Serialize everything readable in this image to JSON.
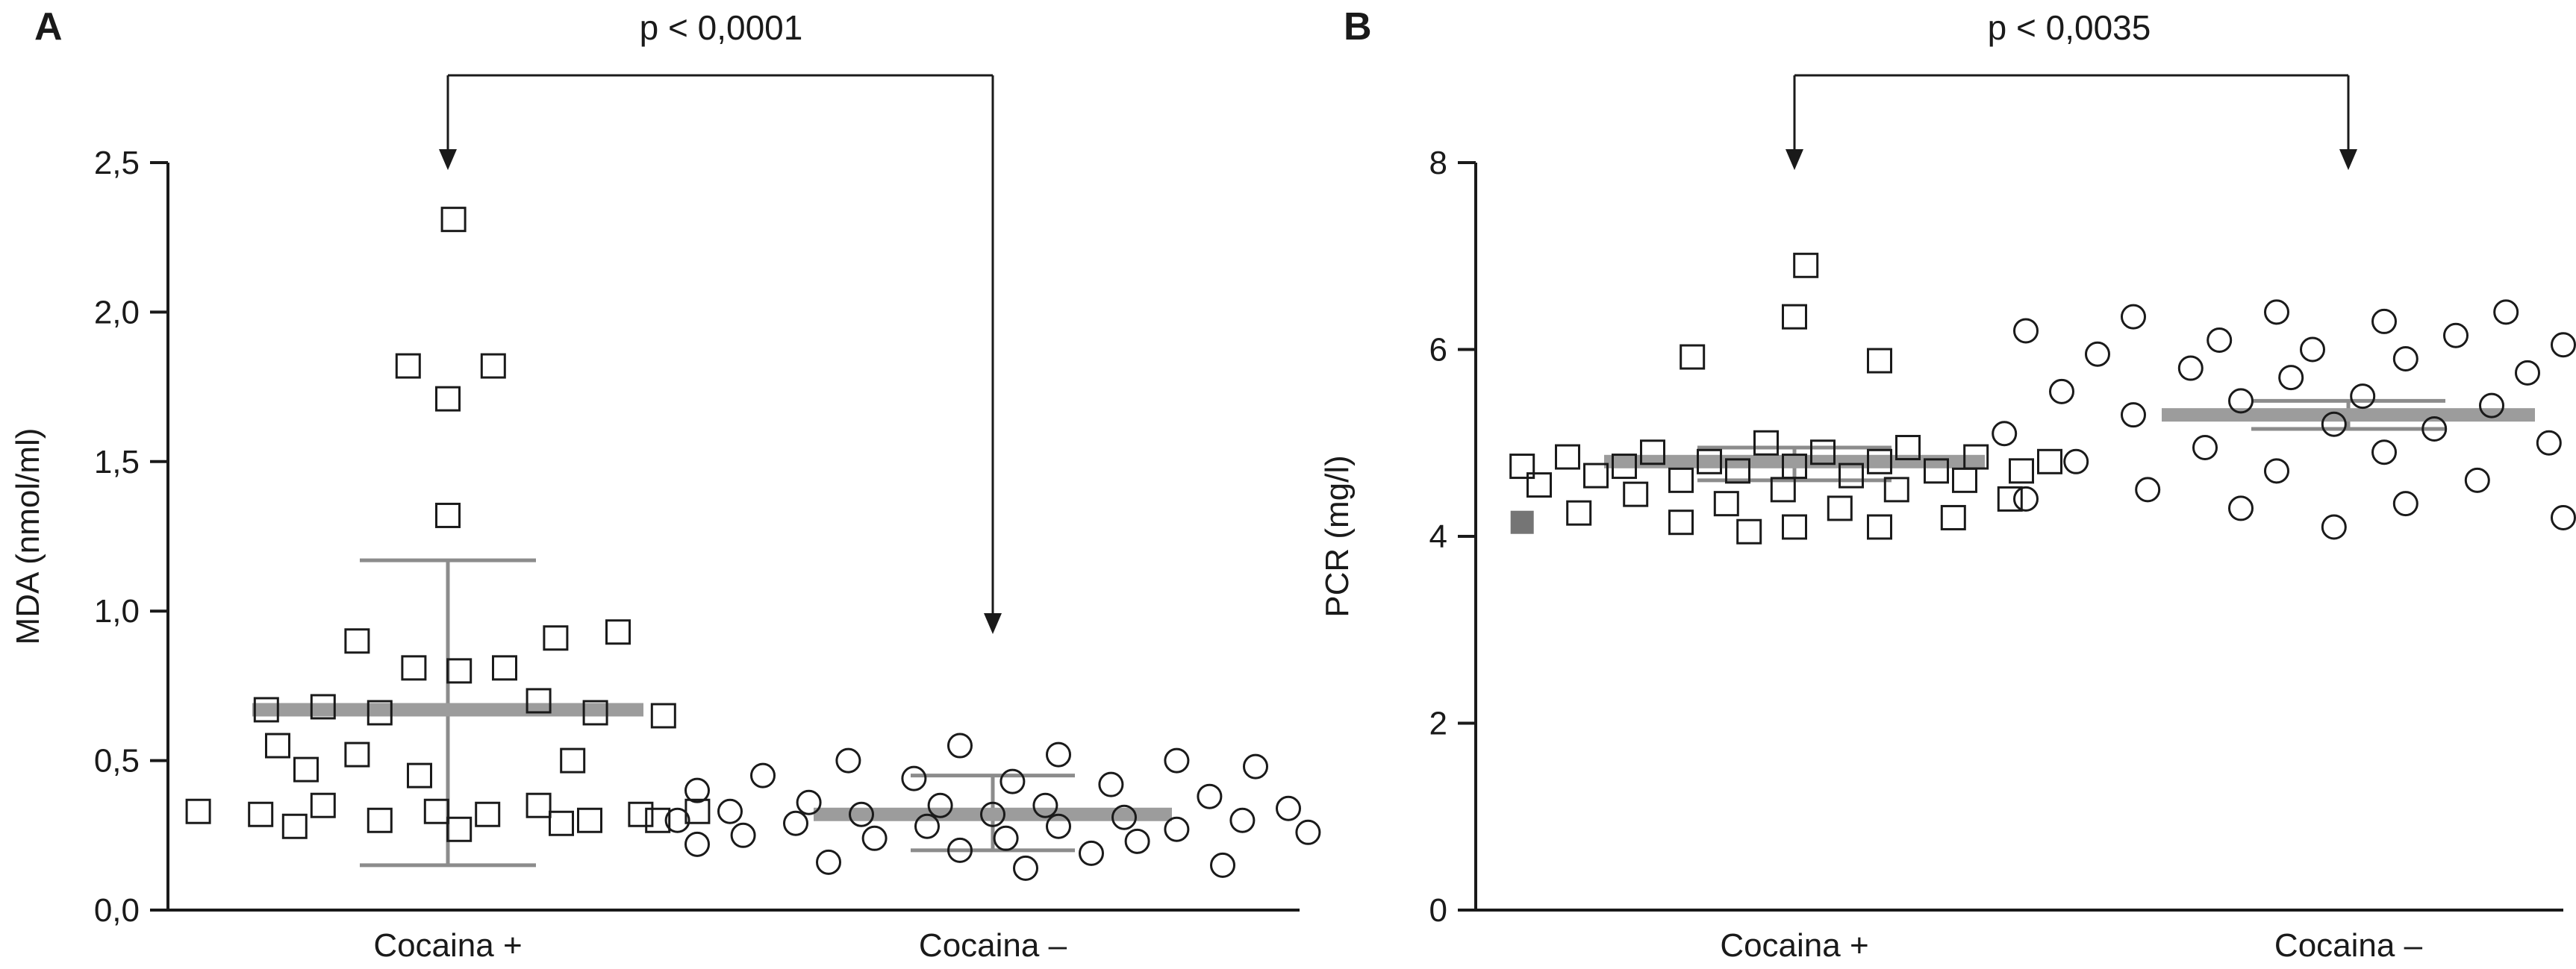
{
  "figure": {
    "background": "#ffffff",
    "ink_color": "#1a1a1a",
    "mean_bar_color": "#9c9c9c",
    "whisker_color": "#8c8c8c",
    "filled_marker_color": "#757575"
  },
  "chart_data": [
    {
      "type": "scatter",
      "panel_label": "A",
      "p_label": "p < 0,0001",
      "ylabel": "MDA (nmol/ml)",
      "xlabel": "",
      "ylim": [
        0,
        2.5
      ],
      "grid": false,
      "yticks": [
        {
          "value": 0,
          "label": "0,0"
        },
        {
          "value": 0.5,
          "label": "0,5"
        },
        {
          "value": 1.0,
          "label": "1,0"
        },
        {
          "value": 1.5,
          "label": "1,5"
        },
        {
          "value": 2.0,
          "label": "2,0"
        },
        {
          "value": 2.5,
          "label": "2,5"
        }
      ],
      "groups": [
        {
          "label": "Cocaina +",
          "marker": "square",
          "mean": 0.67,
          "whiskers": [
            0.15,
            1.17
          ],
          "points": [
            [
              0.01,
              2.31
            ],
            [
              -0.07,
              1.82
            ],
            [
              0.0,
              1.71
            ],
            [
              0.08,
              1.82
            ],
            [
              0.0,
              1.32
            ],
            [
              -0.16,
              0.9
            ],
            [
              -0.06,
              0.81
            ],
            [
              0.02,
              0.8
            ],
            [
              0.1,
              0.81
            ],
            [
              0.19,
              0.91
            ],
            [
              0.3,
              0.93
            ],
            [
              -0.32,
              0.67
            ],
            [
              -0.22,
              0.68
            ],
            [
              -0.12,
              0.66
            ],
            [
              0.16,
              0.7
            ],
            [
              0.26,
              0.66
            ],
            [
              0.38,
              0.65
            ],
            [
              -0.3,
              0.55
            ],
            [
              -0.16,
              0.52
            ],
            [
              0.22,
              0.5
            ],
            [
              -0.25,
              0.47
            ],
            [
              -0.05,
              0.45
            ],
            [
              -0.44,
              0.33
            ],
            [
              -0.33,
              0.32
            ],
            [
              -0.22,
              0.35
            ],
            [
              -0.12,
              0.3
            ],
            [
              -0.02,
              0.33
            ],
            [
              0.07,
              0.32
            ],
            [
              0.16,
              0.35
            ],
            [
              0.25,
              0.3
            ],
            [
              0.34,
              0.32
            ],
            [
              0.44,
              0.33
            ],
            [
              -0.27,
              0.28
            ],
            [
              0.02,
              0.27
            ],
            [
              0.2,
              0.29
            ],
            [
              0.37,
              0.3
            ]
          ],
          "filled_points": []
        },
        {
          "label": "Cocaina –",
          "marker": "circle",
          "mean": 0.32,
          "whiskers": [
            0.2,
            0.45
          ],
          "points": [
            [
              -0.05,
              0.55
            ],
            [
              0.1,
              0.52
            ],
            [
              -0.22,
              0.5
            ],
            [
              0.28,
              0.5
            ],
            [
              0.4,
              0.48
            ],
            [
              -0.35,
              0.45
            ],
            [
              -0.12,
              0.44
            ],
            [
              0.03,
              0.43
            ],
            [
              0.18,
              0.42
            ],
            [
              -0.45,
              0.4
            ],
            [
              0.33,
              0.38
            ],
            [
              -0.28,
              0.36
            ],
            [
              -0.08,
              0.35
            ],
            [
              0.08,
              0.35
            ],
            [
              0.45,
              0.34
            ],
            [
              -0.4,
              0.33
            ],
            [
              -0.2,
              0.32
            ],
            [
              0.0,
              0.32
            ],
            [
              0.2,
              0.31
            ],
            [
              0.38,
              0.3
            ],
            [
              -0.48,
              0.3
            ],
            [
              -0.3,
              0.29
            ],
            [
              -0.1,
              0.28
            ],
            [
              0.1,
              0.28
            ],
            [
              0.28,
              0.27
            ],
            [
              0.48,
              0.26
            ],
            [
              -0.38,
              0.25
            ],
            [
              -0.18,
              0.24
            ],
            [
              0.02,
              0.24
            ],
            [
              0.22,
              0.23
            ],
            [
              -0.45,
              0.22
            ],
            [
              -0.05,
              0.2
            ],
            [
              0.15,
              0.19
            ],
            [
              -0.25,
              0.16
            ],
            [
              0.05,
              0.14
            ],
            [
              0.35,
              0.15
            ]
          ],
          "filled_points": []
        }
      ]
    },
    {
      "type": "scatter",
      "panel_label": "B",
      "p_label": "p < 0,0035",
      "ylabel": "PCR (mg/l)",
      "xlabel": "",
      "ylim": [
        0,
        8
      ],
      "grid": false,
      "yticks": [
        {
          "value": 0,
          "label": "0"
        },
        {
          "value": 2,
          "label": "2"
        },
        {
          "value": 4,
          "label": "4"
        },
        {
          "value": 6,
          "label": "6"
        },
        {
          "value": 8,
          "label": "8"
        }
      ],
      "groups": [
        {
          "label": "Cocaina +",
          "marker": "square",
          "mean": 4.8,
          "whiskers": [
            4.6,
            4.95
          ],
          "points": [
            [
              0.02,
              6.9
            ],
            [
              0.0,
              6.35
            ],
            [
              -0.18,
              5.92
            ],
            [
              0.15,
              5.88
            ],
            [
              -0.05,
              5.0
            ],
            [
              0.2,
              4.95
            ],
            [
              -0.25,
              4.9
            ],
            [
              0.05,
              4.9
            ],
            [
              -0.4,
              4.85
            ],
            [
              0.32,
              4.85
            ],
            [
              -0.15,
              4.8
            ],
            [
              0.15,
              4.8
            ],
            [
              0.45,
              4.8
            ],
            [
              -0.48,
              4.75
            ],
            [
              -0.3,
              4.75
            ],
            [
              0.0,
              4.75
            ],
            [
              0.25,
              4.7
            ],
            [
              -0.1,
              4.7
            ],
            [
              0.4,
              4.7
            ],
            [
              -0.35,
              4.65
            ],
            [
              0.1,
              4.65
            ],
            [
              -0.2,
              4.6
            ],
            [
              0.3,
              4.6
            ],
            [
              -0.45,
              4.55
            ],
            [
              -0.02,
              4.5
            ],
            [
              0.18,
              4.5
            ],
            [
              -0.28,
              4.45
            ],
            [
              0.38,
              4.4
            ],
            [
              -0.12,
              4.35
            ],
            [
              0.08,
              4.3
            ],
            [
              -0.38,
              4.25
            ],
            [
              0.28,
              4.2
            ],
            [
              -0.2,
              4.15
            ],
            [
              0.0,
              4.1
            ],
            [
              0.15,
              4.1
            ],
            [
              -0.08,
              4.05
            ]
          ],
          "filled_points": [
            [
              -0.48,
              4.15
            ]
          ]
        },
        {
          "label": "Cocaina –",
          "marker": "circle",
          "mean": 5.3,
          "whiskers": [
            5.15,
            5.45
          ],
          "points": [
            [
              -0.1,
              6.4
            ],
            [
              0.22,
              6.4
            ],
            [
              -0.3,
              6.35
            ],
            [
              0.05,
              6.3
            ],
            [
              0.4,
              6.25
            ],
            [
              -0.45,
              6.2
            ],
            [
              0.15,
              6.15
            ],
            [
              -0.18,
              6.1
            ],
            [
              0.3,
              6.05
            ],
            [
              -0.05,
              6.0
            ],
            [
              -0.35,
              5.95
            ],
            [
              0.08,
              5.9
            ],
            [
              0.45,
              5.85
            ],
            [
              -0.22,
              5.8
            ],
            [
              0.25,
              5.75
            ],
            [
              -0.08,
              5.7
            ],
            [
              0.35,
              5.6
            ],
            [
              -0.4,
              5.55
            ],
            [
              0.02,
              5.5
            ],
            [
              -0.15,
              5.45
            ],
            [
              0.2,
              5.4
            ],
            [
              -0.3,
              5.3
            ],
            [
              0.42,
              5.25
            ],
            [
              -0.02,
              5.2
            ],
            [
              0.12,
              5.15
            ],
            [
              -0.48,
              5.1
            ],
            [
              0.28,
              5.0
            ],
            [
              -0.2,
              4.95
            ],
            [
              0.05,
              4.9
            ],
            [
              -0.38,
              4.8
            ],
            [
              0.38,
              4.75
            ],
            [
              -0.1,
              4.7
            ],
            [
              0.18,
              4.6
            ],
            [
              -0.28,
              4.5
            ],
            [
              0.45,
              4.45
            ],
            [
              -0.45,
              4.4
            ],
            [
              0.08,
              4.35
            ],
            [
              -0.15,
              4.3
            ],
            [
              0.3,
              4.2
            ],
            [
              -0.02,
              4.1
            ]
          ],
          "filled_points": []
        }
      ]
    }
  ]
}
